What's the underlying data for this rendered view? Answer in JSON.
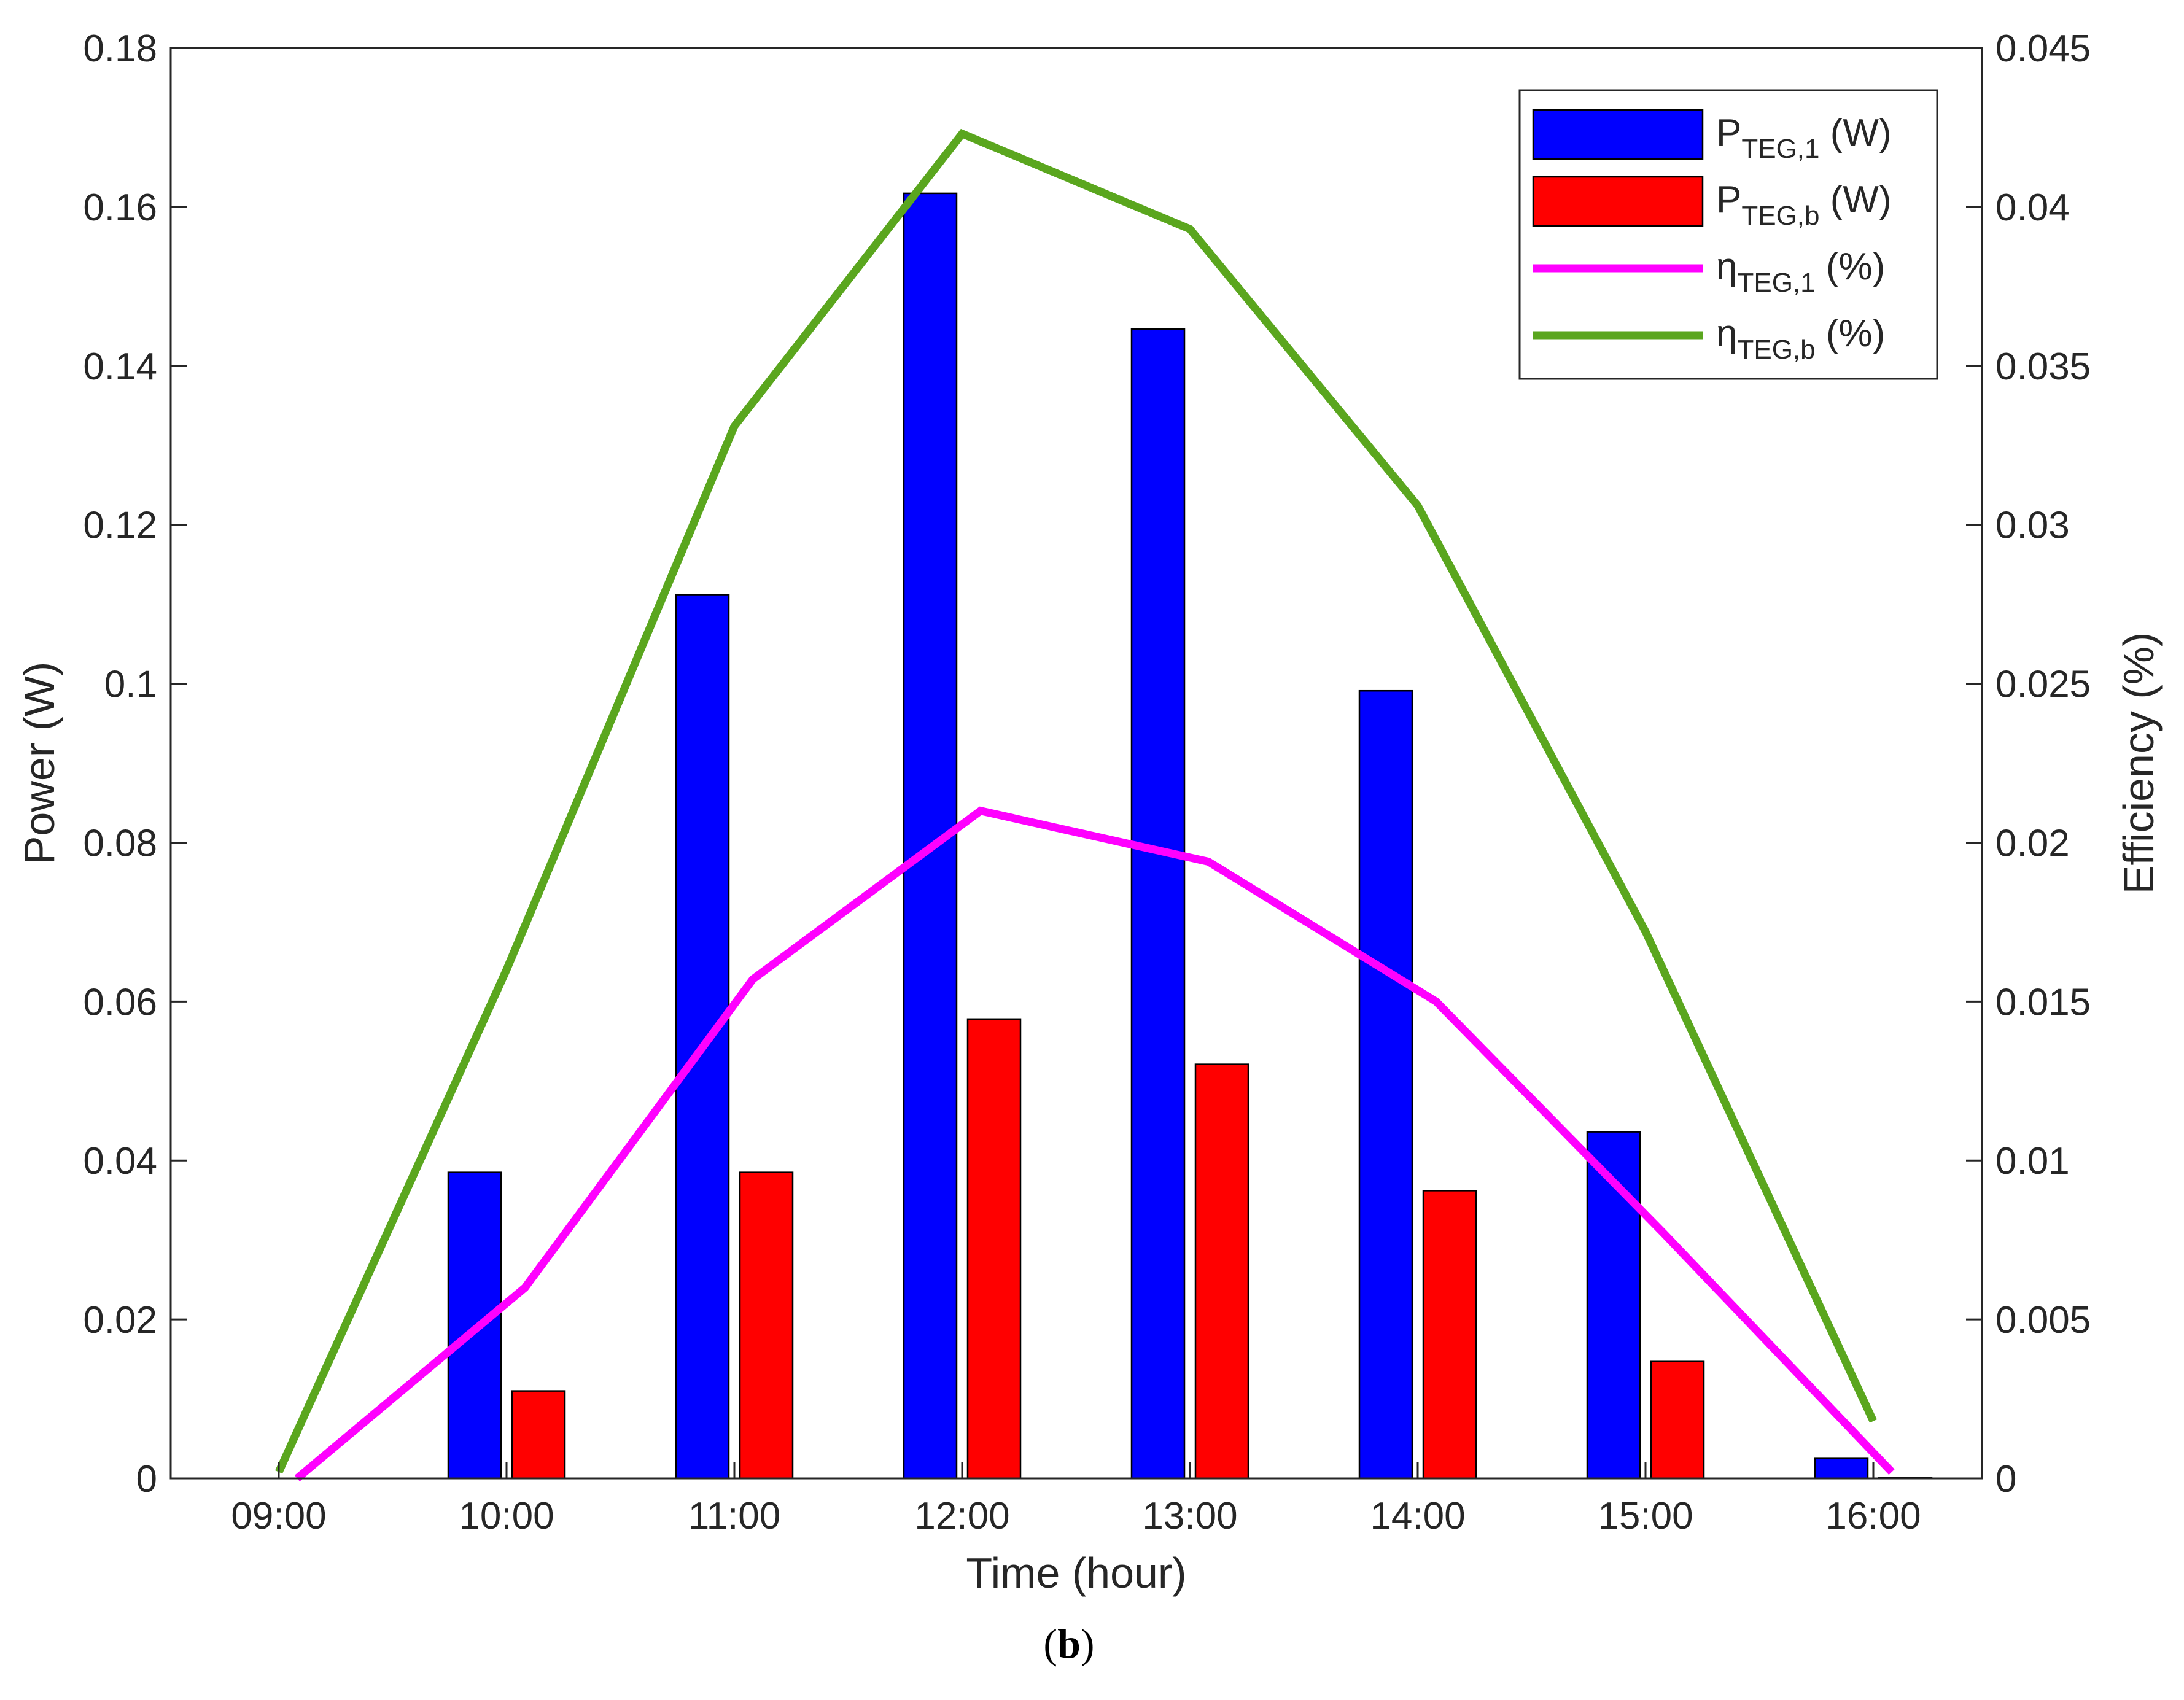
{
  "chart_data": {
    "type": "bar+line",
    "title": "",
    "caption": {
      "open": "(",
      "label": "b",
      "close": ")"
    },
    "xlabel": "Time (hour)",
    "ylabel_left": "Power (W)",
    "ylabel_right": "Efficiency (%)",
    "categories": [
      "09:00",
      "10:00",
      "11:00",
      "12:00",
      "13:00",
      "14:00",
      "15:00",
      "16:00"
    ],
    "ylim_left": [
      0,
      0.18
    ],
    "ylim_right": [
      0,
      0.045
    ],
    "left_ticks": [
      "0",
      "0.02",
      "0.04",
      "0.06",
      "0.08",
      "0.1",
      "0.12",
      "0.14",
      "0.16",
      "0.18"
    ],
    "right_ticks": [
      "0",
      "0.005",
      "0.01",
      "0.015",
      "0.02",
      "0.025",
      "0.03",
      "0.035",
      "0.04",
      "0.045"
    ],
    "grid": false,
    "legend_position": "top-right",
    "bar_series": [
      {
        "name": "P_TEG,1 (W)",
        "legend_main": "P",
        "legend_sub": "TEG,1",
        "legend_unit": " (W)",
        "color": "#0000ff",
        "values": [
          0,
          0.0385,
          0.1112,
          0.1617,
          0.1446,
          0.0991,
          0.0436,
          0.0025
        ]
      },
      {
        "name": "P_TEG,b (W)",
        "legend_main": "P",
        "legend_sub": "TEG,b",
        "legend_unit": " (W)",
        "color": "#ff0000",
        "values": [
          0,
          0.011,
          0.0385,
          0.0578,
          0.0521,
          0.0362,
          0.0147,
          0.0001
        ]
      }
    ],
    "line_series": [
      {
        "name": "η_TEG,1 (%)",
        "legend_main": "η",
        "legend_sub": "TEG,1",
        "legend_unit": " (%)",
        "color": "#ff00ff",
        "values": [
          0,
          0.006,
          0.0157,
          0.021,
          0.0194,
          0.015,
          0.0077,
          0.0002
        ]
      },
      {
        "name": "η_TEG,b (%)",
        "legend_main": "η",
        "legend_sub": "TEG,b",
        "legend_unit": " (%)",
        "color": "#5aa61e",
        "values": [
          0.0002,
          0.016,
          0.0331,
          0.0423,
          0.0393,
          0.0306,
          0.0172,
          0.0018
        ]
      }
    ]
  }
}
